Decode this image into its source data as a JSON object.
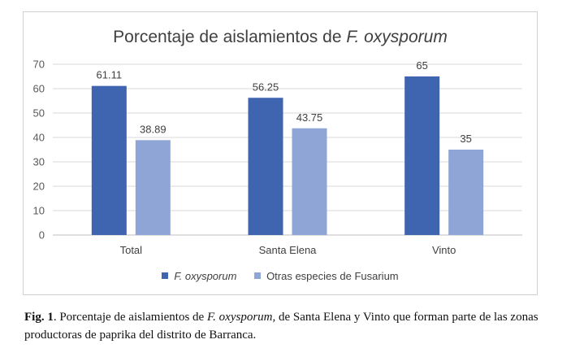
{
  "chart_data": {
    "type": "bar",
    "title_prefix": "Porcentaje de aislamientos de ",
    "title_species": "F. oxysporum",
    "categories": [
      "Total",
      "Santa Elena",
      "Vinto"
    ],
    "series": [
      {
        "name": "F. oxysporum",
        "values": [
          61.11,
          56.25,
          65
        ],
        "color": "#3f64b0"
      },
      {
        "name": "Otras especies de Fusarium",
        "values": [
          38.89,
          43.75,
          35
        ],
        "color": "#8fa5d6"
      }
    ],
    "data_labels": [
      [
        "61.11",
        "56.25",
        "65"
      ],
      [
        "38.89",
        "43.75",
        "35"
      ]
    ],
    "yticks": [
      0,
      10,
      20,
      30,
      40,
      50,
      60,
      70
    ],
    "ylim": [
      0,
      70
    ],
    "grid": true,
    "legend_position": "bottom"
  },
  "caption": {
    "fig_label": "Fig. 1",
    "text_a": ". Porcentaje de aislamientos de ",
    "species": "F. oxysporum,",
    "text_b": " de Santa Elena y Vinto que forman parte de las zonas productoras de paprika del distrito de Barranca."
  }
}
